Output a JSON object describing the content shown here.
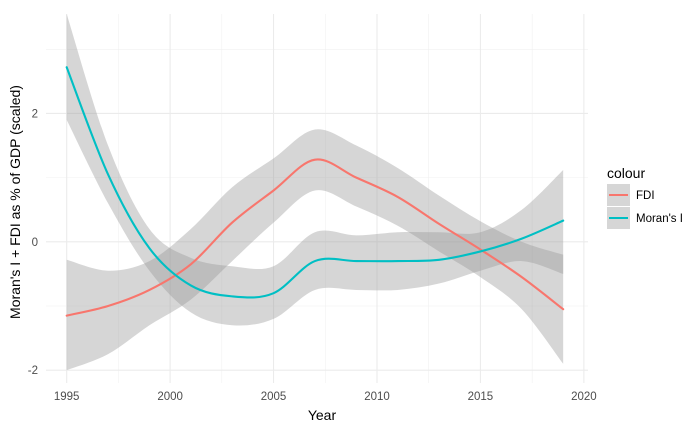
{
  "chart_data": {
    "type": "line",
    "xlabel": "Year",
    "ylabel": "Moran's I + FDI as % of GDP (scaled)",
    "xlim": [
      1994,
      2020.2
    ],
    "ylim": [
      -2.2,
      3.55
    ],
    "x_ticks": [
      1995,
      2000,
      2005,
      2010,
      2015,
      2020
    ],
    "y_ticks": [
      -2,
      0,
      2
    ],
    "grid": true,
    "legend": {
      "title": "colour",
      "placement": "right"
    },
    "series": [
      {
        "name": "FDI",
        "color": "#F8766D",
        "x": [
          1995,
          1997,
          1999,
          2001,
          2003,
          2005,
          2007,
          2009,
          2011,
          2013,
          2015,
          2017,
          2019
        ],
        "y": [
          -1.15,
          -1.0,
          -0.75,
          -0.35,
          0.3,
          0.8,
          1.28,
          1.0,
          0.7,
          0.28,
          -0.12,
          -0.55,
          -1.05
        ],
        "ci_lower": [
          -2.0,
          -1.75,
          -1.3,
          -0.9,
          -0.3,
          0.3,
          0.8,
          0.55,
          0.25,
          -0.15,
          -0.55,
          -1.05,
          -1.9
        ],
        "ci_upper": [
          -0.28,
          -0.45,
          -0.3,
          0.2,
          0.85,
          1.3,
          1.75,
          1.5,
          1.15,
          0.72,
          0.32,
          0.0,
          -0.2
        ]
      },
      {
        "name": "Moran's I",
        "color": "#00BFC4",
        "x": [
          1995,
          1997,
          1999,
          2001,
          2003,
          2005,
          2007,
          2009,
          2011,
          2013,
          2015,
          2017,
          2019
        ],
        "y": [
          2.72,
          1.05,
          -0.1,
          -0.68,
          -0.85,
          -0.8,
          -0.3,
          -0.3,
          -0.3,
          -0.28,
          -0.15,
          0.05,
          0.33
        ],
        "ci_lower": [
          1.9,
          0.6,
          -0.45,
          -1.1,
          -1.3,
          -1.2,
          -0.75,
          -0.75,
          -0.75,
          -0.65,
          -0.45,
          -0.3,
          -0.5
        ],
        "ci_upper": [
          3.55,
          1.5,
          0.2,
          -0.25,
          -0.38,
          -0.38,
          0.15,
          0.1,
          0.15,
          0.15,
          0.15,
          0.5,
          1.12
        ]
      }
    ],
    "ribbon_color": "#999999"
  }
}
